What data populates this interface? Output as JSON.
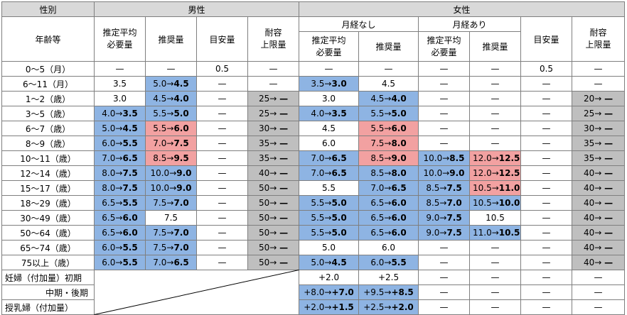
{
  "header": {
    "gender_label": "性別",
    "male_label": "男性",
    "female_label": "女性",
    "age_label": "年齢等",
    "no_menses_label": "月経なし",
    "menses_label": "月経あり",
    "columns": {
      "ear": "推定平均\n必要量",
      "rda": "推奨量",
      "ai": "目安量",
      "ul": "耐容\n上限量"
    }
  },
  "rows": [
    {
      "age": "0〜5（月）",
      "cells": [
        [
          "—",
          ""
        ],
        [
          "—",
          ""
        ],
        [
          "0.5",
          ""
        ],
        [
          "—",
          ""
        ],
        [
          "—",
          ""
        ],
        [
          "—",
          ""
        ],
        [
          "—",
          ""
        ],
        [
          "—",
          ""
        ],
        [
          "0.5",
          ""
        ],
        [
          "—",
          ""
        ]
      ]
    },
    {
      "age": "6〜11（月）",
      "cells": [
        [
          "3.5",
          ""
        ],
        [
          "5.0→|4.5",
          "blue"
        ],
        [
          "—",
          ""
        ],
        [
          "—",
          ""
        ],
        [
          "3.5→|3.0",
          "blue"
        ],
        [
          "4.5",
          ""
        ],
        [
          "—",
          ""
        ],
        [
          "—",
          ""
        ],
        [
          "—",
          ""
        ],
        [
          "—",
          ""
        ]
      ]
    },
    {
      "age": "1〜2（歳）",
      "cells": [
        [
          "3.0",
          ""
        ],
        [
          "4.5→|4.0",
          "blue"
        ],
        [
          "—",
          ""
        ],
        [
          "25→ |—",
          "gray"
        ],
        [
          "3.0",
          ""
        ],
        [
          "4.5→|4.0",
          "blue"
        ],
        [
          "—",
          ""
        ],
        [
          "—",
          ""
        ],
        [
          "—",
          ""
        ],
        [
          "20→ |—",
          "gray"
        ]
      ]
    },
    {
      "age": "3〜5（歳）",
      "cells": [
        [
          "4.0→|3.5",
          "blue"
        ],
        [
          "5.5→|5.0",
          "blue"
        ],
        [
          "—",
          ""
        ],
        [
          "25→ |—",
          "gray"
        ],
        [
          "4.0→|3.5",
          "blue"
        ],
        [
          "5.5→|5.0",
          "blue"
        ],
        [
          "—",
          ""
        ],
        [
          "—",
          ""
        ],
        [
          "—",
          ""
        ],
        [
          "25→ |—",
          "gray"
        ]
      ]
    },
    {
      "age": "6〜7（歳）",
      "cells": [
        [
          "5.0→|4.5",
          "blue"
        ],
        [
          "5.5→|6.0",
          "red"
        ],
        [
          "—",
          ""
        ],
        [
          "30→ |—",
          "gray"
        ],
        [
          "4.5",
          ""
        ],
        [
          "5.5→|6.0",
          "red"
        ],
        [
          "—",
          ""
        ],
        [
          "—",
          ""
        ],
        [
          "—",
          ""
        ],
        [
          "30→ |—",
          "gray"
        ]
      ]
    },
    {
      "age": "8〜9（歳）",
      "cells": [
        [
          "6.0→|5.5",
          "blue"
        ],
        [
          "7.0→|7.5",
          "red"
        ],
        [
          "—",
          ""
        ],
        [
          "35→ |—",
          "gray"
        ],
        [
          "6.0",
          ""
        ],
        [
          "7.5→|8.0",
          "red"
        ],
        [
          "—",
          ""
        ],
        [
          "—",
          ""
        ],
        [
          "—",
          ""
        ],
        [
          "35→ |—",
          "gray"
        ]
      ]
    },
    {
      "age": "10〜11（歳）",
      "cells": [
        [
          "7.0→|6.5",
          "blue"
        ],
        [
          "8.5→|9.5",
          "red"
        ],
        [
          "—",
          ""
        ],
        [
          "35→ |—",
          "gray"
        ],
        [
          "7.0→|6.5",
          "blue"
        ],
        [
          "8.5→|9.0",
          "red"
        ],
        [
          "10.0→|8.5",
          "blue"
        ],
        [
          "12.0→|12.5",
          "red"
        ],
        [
          "—",
          ""
        ],
        [
          "35→ |—",
          "gray"
        ]
      ]
    },
    {
      "age": "12〜14（歳）",
      "cells": [
        [
          "8.0→|7.5",
          "blue"
        ],
        [
          "10.0→|9.0",
          "blue"
        ],
        [
          "—",
          ""
        ],
        [
          "40→ |—",
          "gray"
        ],
        [
          "7.0→|6.5",
          "blue"
        ],
        [
          "8.5→|8.0",
          "blue"
        ],
        [
          "10.0→|9.0",
          "blue"
        ],
        [
          "12.0→|12.5",
          "red"
        ],
        [
          "—",
          ""
        ],
        [
          "40→ |—",
          "gray"
        ]
      ]
    },
    {
      "age": "15〜17（歳）",
      "cells": [
        [
          "8.0→|7.5",
          "blue"
        ],
        [
          "10.0→|9.0",
          "blue"
        ],
        [
          "—",
          ""
        ],
        [
          "50→ |—",
          "gray"
        ],
        [
          "5.5",
          ""
        ],
        [
          "7.0→|6.5",
          "blue"
        ],
        [
          "8.5→|7.5",
          "blue"
        ],
        [
          "10.5→|11.0",
          "red"
        ],
        [
          "—",
          ""
        ],
        [
          "40→ |—",
          "gray"
        ]
      ]
    },
    {
      "age": "18〜29（歳）",
      "cells": [
        [
          "6.5→|5.5",
          "blue"
        ],
        [
          "7.5→|7.0",
          "blue"
        ],
        [
          "—",
          ""
        ],
        [
          "50→ |—",
          "gray"
        ],
        [
          "5.5→|5.0",
          "blue"
        ],
        [
          "6.5→|6.0",
          "blue"
        ],
        [
          "8.5→|7.0",
          "blue"
        ],
        [
          "10.5→|10.0",
          "blue"
        ],
        [
          "—",
          ""
        ],
        [
          "40→ |—",
          "gray"
        ]
      ]
    },
    {
      "age": "30〜49（歳）",
      "cells": [
        [
          "6.5→|6.0",
          "blue"
        ],
        [
          "7.5",
          ""
        ],
        [
          "—",
          ""
        ],
        [
          "50→ |—",
          "gray"
        ],
        [
          "5.5→|5.0",
          "blue"
        ],
        [
          "6.5→|6.0",
          "blue"
        ],
        [
          "9.0→|7.5",
          "blue"
        ],
        [
          "10.5",
          ""
        ],
        [
          "—",
          ""
        ],
        [
          "40→ |—",
          "gray"
        ]
      ]
    },
    {
      "age": "50〜64（歳）",
      "cells": [
        [
          "6.5→|6.0",
          "blue"
        ],
        [
          "7.5→|7.0",
          "blue"
        ],
        [
          "—",
          ""
        ],
        [
          "50→ |—",
          "gray"
        ],
        [
          "5.5→|5.0",
          "blue"
        ],
        [
          "6.5→|6.0",
          "blue"
        ],
        [
          "9.0→|7.5",
          "blue"
        ],
        [
          "11.0→|10.5",
          "blue"
        ],
        [
          "—",
          ""
        ],
        [
          "40→ |—",
          "gray"
        ]
      ]
    },
    {
      "age": "65〜74（歳）",
      "cells": [
        [
          "6.0→|5.5",
          "blue"
        ],
        [
          "7.5→|7.0",
          "blue"
        ],
        [
          "—",
          ""
        ],
        [
          "50→ |—",
          "gray"
        ],
        [
          "5.0",
          ""
        ],
        [
          "6.0",
          ""
        ],
        [
          "—",
          ""
        ],
        [
          "—",
          ""
        ],
        [
          "—",
          ""
        ],
        [
          "40→ |—",
          "gray"
        ]
      ]
    },
    {
      "age": "75以上（歳）",
      "cells": [
        [
          "6.0→|5.5",
          "blue"
        ],
        [
          "7.0→|6.5",
          "blue"
        ],
        [
          "—",
          ""
        ],
        [
          "50→ |—",
          "gray"
        ],
        [
          "5.0→|4.5",
          "blue"
        ],
        [
          "6.0→|5.5",
          "blue"
        ],
        [
          "—",
          ""
        ],
        [
          "—",
          ""
        ],
        [
          "—",
          ""
        ],
        [
          "40→ |—",
          "gray"
        ]
      ]
    }
  ],
  "pregnancy_rows": [
    {
      "label": "妊婦（付加量）初期",
      "align": "left",
      "cells": [
        [
          "+2.0",
          ""
        ],
        [
          "+2.5",
          ""
        ],
        [
          "—",
          ""
        ],
        [
          "—",
          ""
        ],
        [
          "—",
          ""
        ],
        [
          "—",
          ""
        ]
      ]
    },
    {
      "label": "中期・後期",
      "align": "right",
      "cells": [
        [
          "+8.0→|+7.0",
          "blue"
        ],
        [
          "+9.5→|+8.5",
          "blue"
        ],
        [
          "—",
          ""
        ],
        [
          "—",
          ""
        ],
        [
          "—",
          ""
        ],
        [
          "—",
          ""
        ]
      ]
    },
    {
      "label": "授乳婦（付加量）",
      "align": "left",
      "cells": [
        [
          "+2.0→|+1.5",
          "blue"
        ],
        [
          "+2.5→|+2.0",
          "blue"
        ],
        [
          "—",
          ""
        ],
        [
          "—",
          ""
        ],
        [
          "—",
          ""
        ],
        [
          "—",
          ""
        ]
      ]
    }
  ]
}
